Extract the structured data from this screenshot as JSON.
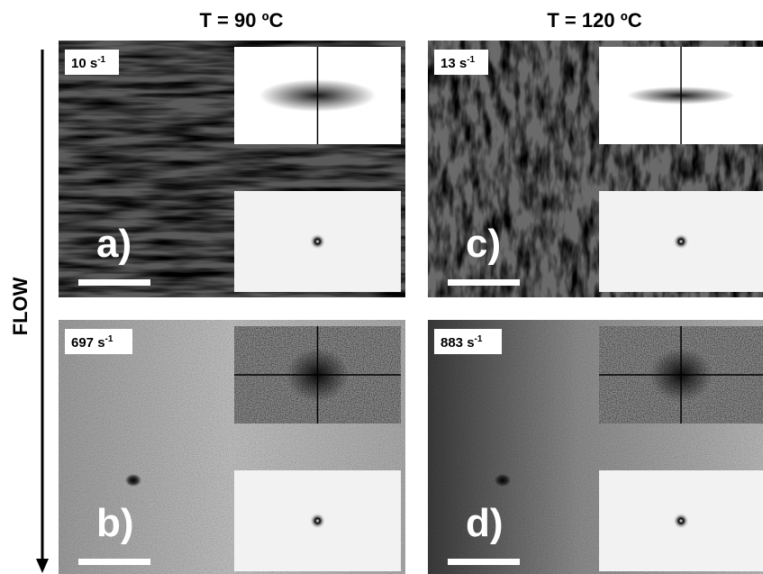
{
  "header": {
    "columns": [
      "T = 90 ºC",
      "T = 120 ºC"
    ],
    "axis_label": "FLOW"
  },
  "panels": [
    {
      "rate": "10 s",
      "rate_exp": "-1",
      "letter": "a)"
    },
    {
      "rate": "697 s",
      "rate_exp": "-1",
      "letter": "b)"
    },
    {
      "rate": "13 s",
      "rate_exp": "-1",
      "letter": "c)"
    },
    {
      "rate": "883 s",
      "rate_exp": "-1",
      "letter": "d)"
    }
  ]
}
